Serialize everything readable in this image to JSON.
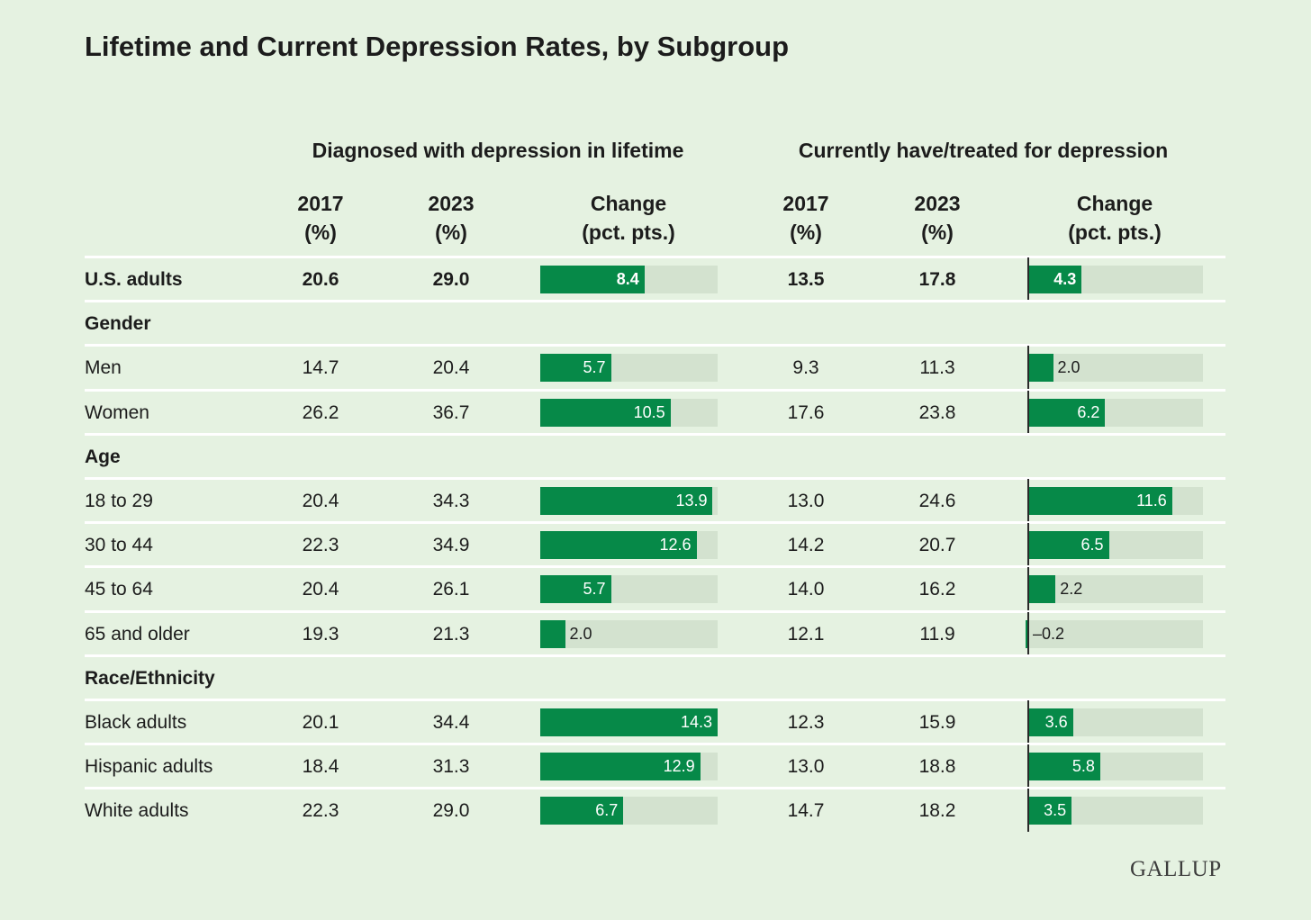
{
  "title": "Lifetime and Current Depression Rates, by Subgroup",
  "logo": "GALLUP",
  "chart_data": {
    "type": "table",
    "title": "Lifetime and Current Depression Rates, by Subgroup",
    "groups": [
      {
        "name": "Diagnosed with depression in lifetime",
        "columns": [
          {
            "line1": "2017",
            "line2": "(%)"
          },
          {
            "line1": "2023",
            "line2": "(%)"
          },
          {
            "line1": "Change",
            "line2": "(pct. pts.)"
          }
        ]
      },
      {
        "name": "Currently have/treated for depression",
        "columns": [
          {
            "line1": "2017",
            "line2": "(%)"
          },
          {
            "line1": "2023",
            "line2": "(%)"
          },
          {
            "line1": "Change",
            "line2": "(pct. pts.)"
          }
        ]
      }
    ],
    "bar_scale_max": 14.3,
    "rows": [
      {
        "kind": "data",
        "bold": true,
        "label": "U.S. adults",
        "lifetime": {
          "y2017": "20.6",
          "y2023": "29.0",
          "change": "8.4"
        },
        "current": {
          "y2017": "13.5",
          "y2023": "17.8",
          "change": "4.3"
        }
      },
      {
        "kind": "section",
        "label": "Gender"
      },
      {
        "kind": "data",
        "label": "Men",
        "lifetime": {
          "y2017": "14.7",
          "y2023": "20.4",
          "change": "5.7"
        },
        "current": {
          "y2017": "9.3",
          "y2023": "11.3",
          "change": "2.0"
        }
      },
      {
        "kind": "data",
        "label": "Women",
        "lifetime": {
          "y2017": "26.2",
          "y2023": "36.7",
          "change": "10.5"
        },
        "current": {
          "y2017": "17.6",
          "y2023": "23.8",
          "change": "6.2"
        }
      },
      {
        "kind": "section",
        "label": "Age"
      },
      {
        "kind": "data",
        "label": "18 to 29",
        "lifetime": {
          "y2017": "20.4",
          "y2023": "34.3",
          "change": "13.9"
        },
        "current": {
          "y2017": "13.0",
          "y2023": "24.6",
          "change": "11.6"
        }
      },
      {
        "kind": "data",
        "label": "30 to 44",
        "lifetime": {
          "y2017": "22.3",
          "y2023": "34.9",
          "change": "12.6"
        },
        "current": {
          "y2017": "14.2",
          "y2023": "20.7",
          "change": "6.5"
        }
      },
      {
        "kind": "data",
        "label": "45 to 64",
        "lifetime": {
          "y2017": "20.4",
          "y2023": "26.1",
          "change": "5.7"
        },
        "current": {
          "y2017": "14.0",
          "y2023": "16.2",
          "change": "2.2"
        }
      },
      {
        "kind": "data",
        "label": "65 and older",
        "lifetime": {
          "y2017": "19.3",
          "y2023": "21.3",
          "change": "2.0"
        },
        "current": {
          "y2017": "12.1",
          "y2023": "11.9",
          "change": "–0.2"
        }
      },
      {
        "kind": "section",
        "label": "Race/Ethnicity"
      },
      {
        "kind": "data",
        "label": "Black adults",
        "lifetime": {
          "y2017": "20.1",
          "y2023": "34.4",
          "change": "14.3"
        },
        "current": {
          "y2017": "12.3",
          "y2023": "15.9",
          "change": "3.6"
        }
      },
      {
        "kind": "data",
        "label": "Hispanic adults",
        "lifetime": {
          "y2017": "18.4",
          "y2023": "31.3",
          "change": "12.9"
        },
        "current": {
          "y2017": "13.0",
          "y2023": "18.8",
          "change": "5.8"
        }
      },
      {
        "kind": "data",
        "label": "White adults",
        "lifetime": {
          "y2017": "22.3",
          "y2023": "29.0",
          "change": "6.7"
        },
        "current": {
          "y2017": "14.7",
          "y2023": "18.2",
          "change": "3.5"
        }
      }
    ]
  },
  "colors": {
    "background": "#e5f2e1",
    "bar": "#068948",
    "track": "#d3e2cf",
    "rule": "#ffffff"
  }
}
